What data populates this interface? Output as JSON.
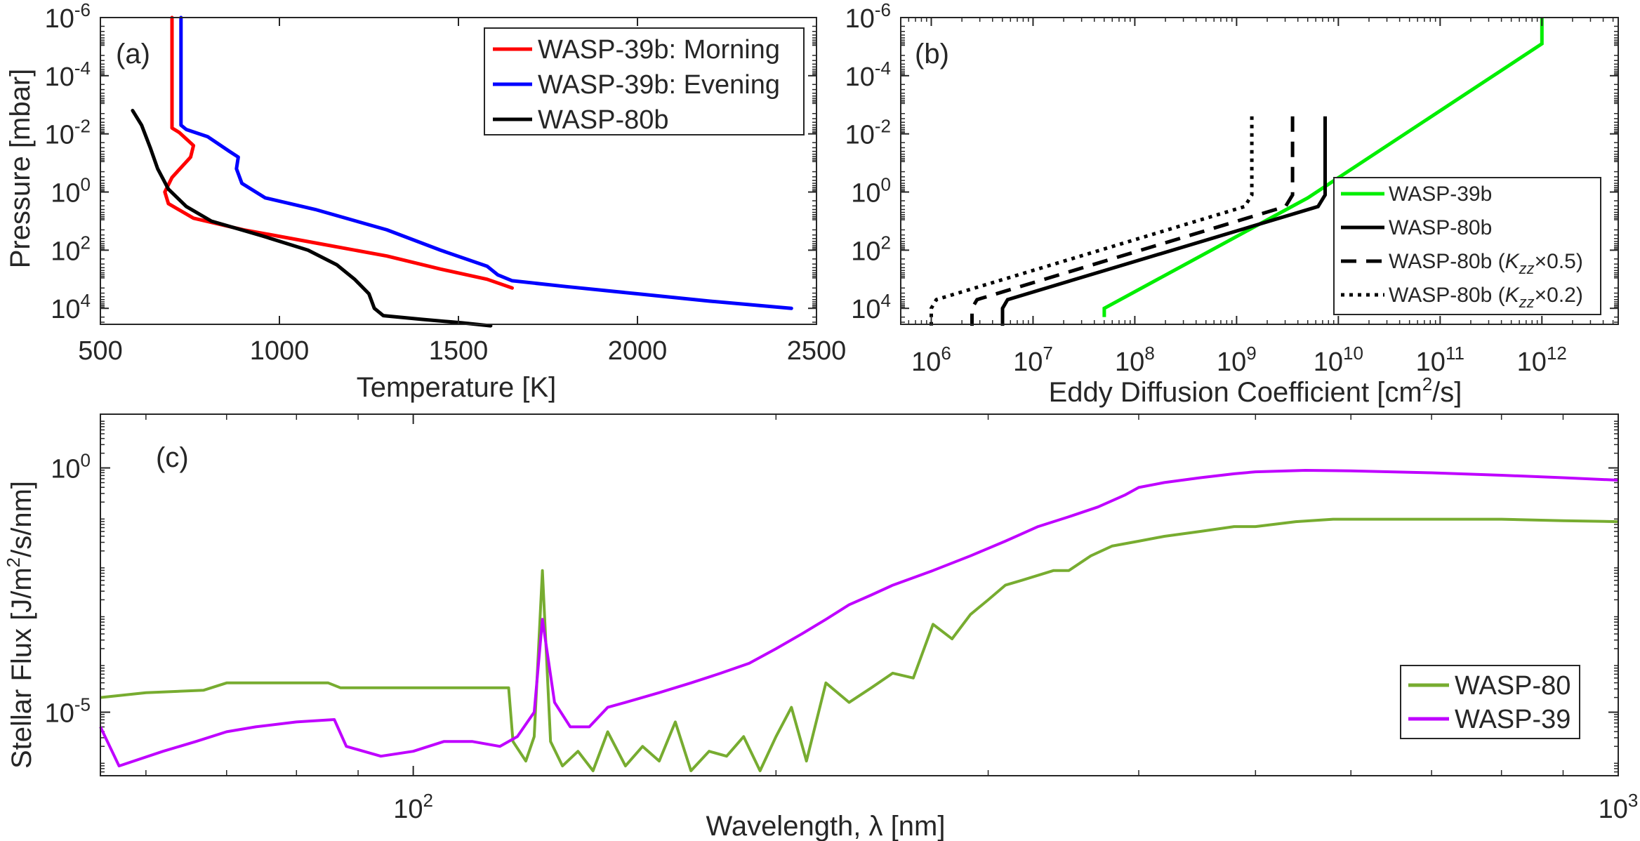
{
  "chart_data": [
    {
      "panel": "a",
      "type": "line",
      "panel_label": "(a)",
      "xlabel": "Temperature [K]",
      "ylabel": "Pressure [mbar]",
      "xscale": "linear",
      "yscale": "log",
      "yreversed": true,
      "xlim": [
        500,
        2500
      ],
      "ylim_exp": [
        -6,
        4.55
      ],
      "xticks": [
        {
          "v": 500,
          "label": "500"
        },
        {
          "v": 1000,
          "label": "1000"
        },
        {
          "v": 1500,
          "label": "1500"
        },
        {
          "v": 2000,
          "label": "2000"
        },
        {
          "v": 2500,
          "label": "2500"
        }
      ],
      "yticks": [
        {
          "e": -6,
          "base": "10",
          "exp": "-6"
        },
        {
          "e": -4,
          "base": "10",
          "exp": "-4"
        },
        {
          "e": -2,
          "base": "10",
          "exp": "-2"
        },
        {
          "e": 0,
          "base": "10",
          "exp": "0"
        },
        {
          "e": 2,
          "base": "10",
          "exp": "2"
        },
        {
          "e": 4,
          "base": "10",
          "exp": "4"
        }
      ],
      "legend_position": "top-right",
      "series": [
        {
          "name": "WASP-39b: Morning",
          "color": "#ff0000",
          "style": "solid",
          "points": [
            [
              700,
              -6
            ],
            [
              700,
              -2.2
            ],
            [
              720,
              -2.05
            ],
            [
              760,
              -1.6
            ],
            [
              752,
              -1.2
            ],
            [
              700,
              -0.5
            ],
            [
              680,
              0
            ],
            [
              690,
              0.4
            ],
            [
              760,
              0.9
            ],
            [
              900,
              1.3
            ],
            [
              1100,
              1.75
            ],
            [
              1300,
              2.2
            ],
            [
              1450,
              2.65
            ],
            [
              1580,
              3.0
            ],
            [
              1650,
              3.3
            ]
          ]
        },
        {
          "name": "WASP-39b: Evening",
          "color": "#0000ff",
          "style": "solid",
          "points": [
            [
              725,
              -6
            ],
            [
              725,
              -2.3
            ],
            [
              740,
              -2.15
            ],
            [
              800,
              -1.9
            ],
            [
              860,
              -1.4
            ],
            [
              885,
              -1.2
            ],
            [
              880,
              -0.8
            ],
            [
              895,
              -0.3
            ],
            [
              960,
              0.2
            ],
            [
              1100,
              0.6
            ],
            [
              1300,
              1.3
            ],
            [
              1450,
              2.0
            ],
            [
              1580,
              2.55
            ],
            [
              1610,
              2.85
            ],
            [
              1650,
              3.05
            ],
            [
              1800,
              3.25
            ],
            [
              2000,
              3.5
            ],
            [
              2200,
              3.75
            ],
            [
              2430,
              4.0
            ]
          ]
        },
        {
          "name": "WASP-80b",
          "color": "#000000",
          "style": "solid",
          "points": [
            [
              590,
              -2.8
            ],
            [
              615,
              -2.3
            ],
            [
              640,
              -1.5
            ],
            [
              660,
              -0.8
            ],
            [
              690,
              -0.1
            ],
            [
              740,
              0.5
            ],
            [
              810,
              1.0
            ],
            [
              950,
              1.5
            ],
            [
              1080,
              2.0
            ],
            [
              1160,
              2.5
            ],
            [
              1210,
              3.0
            ],
            [
              1250,
              3.5
            ],
            [
              1265,
              4.0
            ],
            [
              1290,
              4.25
            ],
            [
              1400,
              4.38
            ],
            [
              1510,
              4.5
            ],
            [
              1590,
              4.6
            ]
          ]
        }
      ]
    },
    {
      "panel": "b",
      "type": "line",
      "panel_label": "(b)",
      "xlabel": "Eddy Diffusion Coefficient [cm",
      "xlabel_sup": "2",
      "xlabel_end": "/s]",
      "ylabel": "",
      "xscale": "log",
      "yscale": "log",
      "yreversed": true,
      "xlim_exp": [
        5.7,
        12.75
      ],
      "ylim_exp": [
        -6,
        4.55
      ],
      "xticks": [
        {
          "e": 6,
          "base": "10",
          "exp": "6"
        },
        {
          "e": 7,
          "base": "10",
          "exp": "7"
        },
        {
          "e": 8,
          "base": "10",
          "exp": "8"
        },
        {
          "e": 9,
          "base": "10",
          "exp": "9"
        },
        {
          "e": 10,
          "base": "10",
          "exp": "10"
        },
        {
          "e": 11,
          "base": "10",
          "exp": "11"
        },
        {
          "e": 12,
          "base": "10",
          "exp": "12"
        }
      ],
      "yticks": [
        {
          "e": -6,
          "base": "10",
          "exp": "-6"
        },
        {
          "e": -4,
          "base": "10",
          "exp": "-4"
        },
        {
          "e": -2,
          "base": "10",
          "exp": "-2"
        },
        {
          "e": 0,
          "base": "10",
          "exp": "0"
        },
        {
          "e": 2,
          "base": "10",
          "exp": "2"
        },
        {
          "e": 4,
          "base": "10",
          "exp": "4"
        }
      ],
      "legend_position": "right",
      "series": [
        {
          "name": "WASP-39b",
          "legend_main": "WASP-39b",
          "color": "#00ee00",
          "style": "solid",
          "points_logx": [
            [
              12.0,
              -6
            ],
            [
              12.0,
              -5.1
            ],
            [
              9.7,
              0.2
            ],
            [
              7.7,
              4.0
            ],
            [
              7.7,
              4.3
            ]
          ]
        },
        {
          "name": "WASP-80b",
          "legend_main": "WASP-80b",
          "color": "#000000",
          "style": "solid",
          "points_logx": [
            [
              9.87,
              -2.6
            ],
            [
              9.87,
              0.1
            ],
            [
              9.8,
              0.5
            ],
            [
              6.75,
              3.7
            ],
            [
              6.7,
              4.0
            ],
            [
              6.7,
              4.6
            ]
          ]
        },
        {
          "name": "WASP-80b (Kzz×0.5)",
          "legend_main": "WASP-80b (",
          "legend_k": "K",
          "legend_zz": "zz",
          "legend_tail": "×0.5)",
          "color": "#000000",
          "style": "dashed",
          "points_logx": [
            [
              9.55,
              -2.6
            ],
            [
              9.55,
              0.1
            ],
            [
              9.48,
              0.5
            ],
            [
              6.45,
              3.7
            ],
            [
              6.4,
              4.0
            ],
            [
              6.4,
              4.6
            ]
          ]
        },
        {
          "name": "WASP-80b (Kzz×0.2)",
          "legend_main": "WASP-80b (",
          "legend_k": "K",
          "legend_zz": "zz",
          "legend_tail": "×0.2)",
          "color": "#000000",
          "style": "dotted",
          "points_logx": [
            [
              9.15,
              -2.6
            ],
            [
              9.15,
              0.1
            ],
            [
              9.08,
              0.5
            ],
            [
              6.05,
              3.7
            ],
            [
              6.0,
              4.0
            ],
            [
              6.0,
              4.6
            ]
          ]
        }
      ]
    },
    {
      "panel": "c",
      "type": "line",
      "panel_label": "(c)",
      "xlabel": "Wavelength, λ [nm]",
      "ylabel": "Stellar Flux [J/m",
      "ylabel_sup": "2",
      "ylabel_end": "/s/nm]",
      "xscale": "log",
      "yscale": "log",
      "xlim": [
        55,
        1000
      ],
      "ylim_exp": [
        -6.3,
        1.1
      ],
      "xticks": [
        {
          "v": 100,
          "base": "10",
          "exp": "2"
        },
        {
          "v": 1000,
          "base": "10",
          "exp": "3"
        }
      ],
      "yticks": [
        {
          "e": 0,
          "base": "10",
          "exp": "0"
        },
        {
          "e": -5,
          "base": "10",
          "exp": "-5"
        }
      ],
      "legend_position": "bottom-right",
      "series": [
        {
          "name": "WASP-80",
          "color": "#77ac30",
          "style": "solid",
          "points": [
            [
              55,
              -4.7
            ],
            [
              60,
              -4.6
            ],
            [
              67,
              -4.55
            ],
            [
              70,
              -4.4
            ],
            [
              85,
              -4.4
            ],
            [
              87,
              -4.5
            ],
            [
              120,
              -4.5
            ],
            [
              121,
              -5.6
            ],
            [
              124,
              -6.0
            ],
            [
              126,
              -5.5
            ],
            [
              128,
              -2.1
            ],
            [
              130,
              -5.6
            ],
            [
              133,
              -6.1
            ],
            [
              137,
              -5.8
            ],
            [
              141,
              -6.2
            ],
            [
              145,
              -5.4
            ],
            [
              150,
              -6.1
            ],
            [
              155,
              -5.7
            ],
            [
              160,
              -6.0
            ],
            [
              165,
              -5.2
            ],
            [
              170,
              -6.2
            ],
            [
              176,
              -5.8
            ],
            [
              182,
              -5.9
            ],
            [
              188,
              -5.5
            ],
            [
              194,
              -6.2
            ],
            [
              200,
              -5.5
            ],
            [
              206,
              -4.9
            ],
            [
              212,
              -6.0
            ],
            [
              220,
              -4.4
            ],
            [
              230,
              -4.8
            ],
            [
              240,
              -4.5
            ],
            [
              250,
              -4.2
            ],
            [
              260,
              -4.3
            ],
            [
              270,
              -3.2
            ],
            [
              280,
              -3.5
            ],
            [
              290,
              -3.0
            ],
            [
              300,
              -2.7
            ],
            [
              310,
              -2.4
            ],
            [
              320,
              -2.3
            ],
            [
              340,
              -2.1
            ],
            [
              350,
              -2.1
            ],
            [
              365,
              -1.8
            ],
            [
              380,
              -1.6
            ],
            [
              400,
              -1.5
            ],
            [
              420,
              -1.4
            ],
            [
              450,
              -1.3
            ],
            [
              480,
              -1.2
            ],
            [
              500,
              -1.2
            ],
            [
              540,
              -1.1
            ],
            [
              580,
              -1.05
            ],
            [
              620,
              -1.05
            ],
            [
              700,
              -1.05
            ],
            [
              800,
              -1.05
            ],
            [
              900,
              -1.08
            ],
            [
              1000,
              -1.1
            ]
          ]
        },
        {
          "name": "WASP-39",
          "color": "#bf00ff",
          "style": "solid",
          "points": [
            [
              55,
              -5.3
            ],
            [
              57,
              -6.1
            ],
            [
              62,
              -5.8
            ],
            [
              66,
              -5.6
            ],
            [
              70,
              -5.4
            ],
            [
              74,
              -5.3
            ],
            [
              80,
              -5.2
            ],
            [
              86,
              -5.15
            ],
            [
              88,
              -5.7
            ],
            [
              94,
              -5.9
            ],
            [
              100,
              -5.8
            ],
            [
              106,
              -5.6
            ],
            [
              112,
              -5.6
            ],
            [
              118,
              -5.7
            ],
            [
              122,
              -5.5
            ],
            [
              126,
              -5.0
            ],
            [
              128,
              -3.1
            ],
            [
              131,
              -4.8
            ],
            [
              135,
              -5.3
            ],
            [
              140,
              -5.3
            ],
            [
              145,
              -4.9
            ],
            [
              150,
              -4.8
            ],
            [
              160,
              -4.6
            ],
            [
              170,
              -4.4
            ],
            [
              180,
              -4.2
            ],
            [
              190,
              -4.0
            ],
            [
              200,
              -3.7
            ],
            [
              210,
              -3.4
            ],
            [
              220,
              -3.1
            ],
            [
              230,
              -2.8
            ],
            [
              240,
              -2.6
            ],
            [
              250,
              -2.4
            ],
            [
              270,
              -2.1
            ],
            [
              290,
              -1.8
            ],
            [
              310,
              -1.5
            ],
            [
              330,
              -1.2
            ],
            [
              350,
              -1.0
            ],
            [
              370,
              -0.8
            ],
            [
              390,
              -0.55
            ],
            [
              400,
              -0.4
            ],
            [
              420,
              -0.3
            ],
            [
              450,
              -0.2
            ],
            [
              480,
              -0.12
            ],
            [
              500,
              -0.08
            ],
            [
              550,
              -0.05
            ],
            [
              600,
              -0.06
            ],
            [
              700,
              -0.1
            ],
            [
              800,
              -0.15
            ],
            [
              900,
              -0.2
            ],
            [
              1000,
              -0.25
            ]
          ]
        }
      ]
    }
  ]
}
